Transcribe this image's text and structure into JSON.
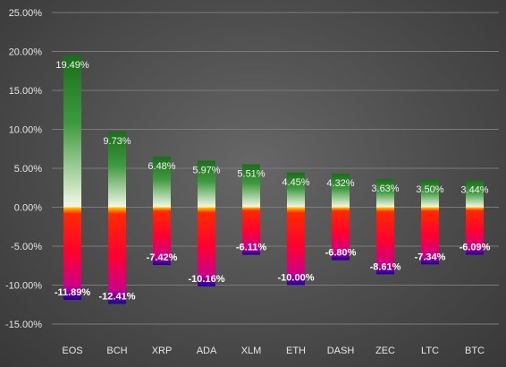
{
  "chart_data": {
    "type": "bar",
    "categories": [
      "EOS",
      "BCH",
      "XRP",
      "ADA",
      "XLM",
      "ETH",
      "DASH",
      "ZEC",
      "LTC",
      "BTC"
    ],
    "series": [
      {
        "values": [
          19.49,
          9.73,
          6.48,
          5.97,
          5.51,
          4.45,
          4.32,
          3.63,
          3.5,
          3.44
        ],
        "labels": [
          "19.49%",
          "9.73%",
          "6.48%",
          "5.97%",
          "5.51%",
          "4.45%",
          "4.32%",
          "3.63%",
          "3.50%",
          "3.44%"
        ]
      },
      {
        "values": [
          -11.89,
          -12.41,
          -7.42,
          -10.16,
          -6.11,
          -10.0,
          -6.8,
          -8.61,
          -7.34,
          -6.09
        ],
        "labels": [
          "-11.89%",
          "-12.41%",
          "-7.42%",
          "-10.16%",
          "-6.11%",
          "-10.00%",
          "-6.80%",
          "-8.61%",
          "-7.34%",
          "-6.09%"
        ]
      }
    ],
    "ylim": [
      -15,
      25
    ],
    "yticks": [
      25,
      20,
      15,
      10,
      5,
      0,
      -5,
      -10,
      -15
    ],
    "ytick_labels": [
      "25.00%",
      "20.00%",
      "15.00%",
      "10.00%",
      "5.00%",
      "0.00%",
      "-5.00%",
      "-10.00%",
      "-15.00%"
    ],
    "grid": true,
    "colors": {
      "gain_top": "#1a6e1a",
      "gain_mid": "#3f9a3f",
      "gain_bottom": "#f4f9e8",
      "loss_top": "#ffcc00",
      "loss_mid": "#ff0000",
      "loss_low": "#e0006a",
      "loss_bottom": "#1a00a0"
    }
  }
}
